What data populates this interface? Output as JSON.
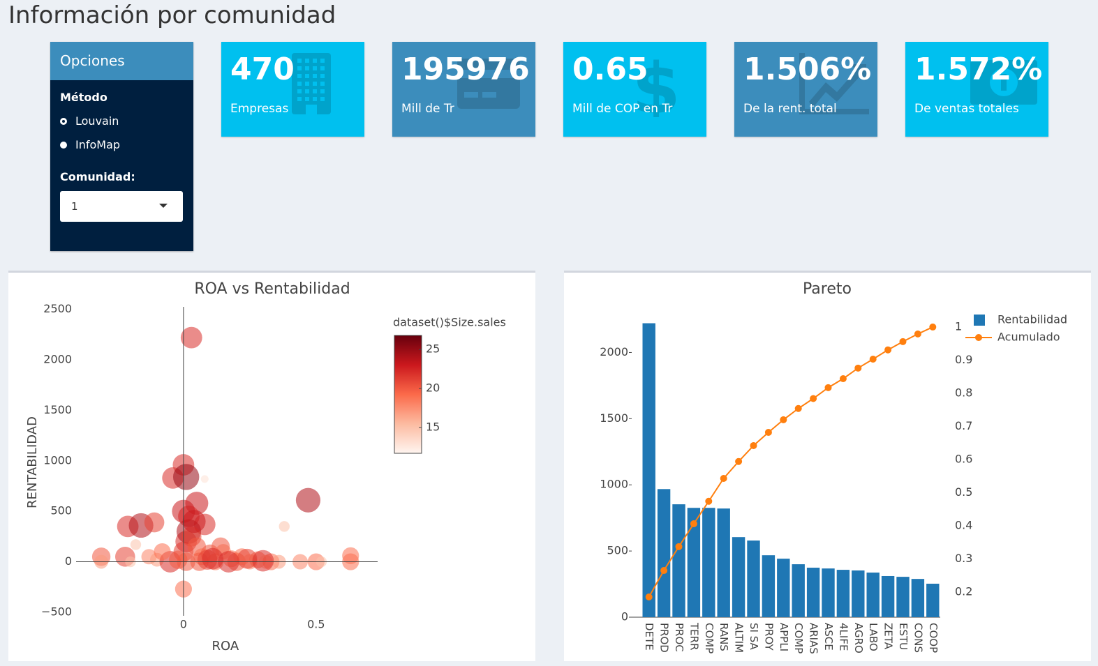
{
  "header": {
    "title": "Información por comunidad"
  },
  "sidebar": {
    "title": "Opciones",
    "method_label": "Método",
    "methods": [
      "Louvain",
      "InfoMap"
    ],
    "community_label": "Comunidad:",
    "community_value": "1"
  },
  "value_boxes": [
    {
      "value": "470",
      "label": "Empresas",
      "color": "#00c0ef"
    },
    {
      "value": "195976",
      "label": "Mill de Tr",
      "color": "#3c8dbc"
    },
    {
      "value": "0.65",
      "label": "Mill de COP en Tr",
      "color": "#00c0ef"
    },
    {
      "value": "1.506%",
      "label": "De la rent. total",
      "color": "#3c8dbc"
    },
    {
      "value": "1.572%",
      "label": "De ventas totales",
      "color": "#00c0ef"
    }
  ],
  "chart_data": [
    {
      "type": "scatter",
      "title": "ROA vs Rentabilidad",
      "x_label": "ROA",
      "y_label": "RENTABILIDAD",
      "x": [
        0.03,
        0,
        -0.04,
        0.01,
        0.08,
        0.05,
        0.08,
        0.02,
        -0.21,
        -0.16,
        -0.11,
        0.47,
        0.38,
        0,
        -0.31,
        -0.31,
        0.63,
        0.63,
        -0.22,
        -0.2,
        -0.13,
        -0.1,
        -0.05,
        0,
        0.01,
        0.02,
        0.03,
        0.05,
        0.07,
        0.1,
        0.12,
        0.15,
        0.18,
        0.2,
        0.22,
        0.25,
        0.28,
        0.31,
        0.33,
        0.36,
        0.44,
        0.5,
        0.52,
        0.06,
        0.09,
        -0.02,
        0.04,
        0,
        -0.18,
        0.14,
        0.17,
        0.24,
        0.3,
        0.01,
        -0.08,
        0.11
      ],
      "values": [
        2220,
        960,
        830,
        840,
        820,
        580,
        370,
        450,
        350,
        360,
        390,
        610,
        350,
        -270,
        50,
        0,
        60,
        0,
        50,
        0,
        50,
        20,
        0,
        100,
        200,
        300,
        250,
        150,
        50,
        80,
        0,
        100,
        30,
        0,
        50,
        0,
        20,
        0,
        0,
        0,
        0,
        0,
        0,
        0,
        20,
        20,
        400,
        500,
        170,
        150,
        0,
        30,
        10,
        0,
        100,
        30
      ],
      "sizes": [
        22,
        22,
        22,
        25,
        13,
        23,
        22,
        22,
        22,
        24,
        21,
        24,
        15,
        19,
        20,
        17,
        19,
        19,
        21,
        15,
        18,
        17,
        22,
        21,
        22,
        24,
        21,
        20,
        19,
        20,
        19,
        18,
        19,
        20,
        19,
        18,
        19,
        17,
        19,
        17,
        18,
        19,
        15,
        20,
        21,
        20,
        23,
        23,
        15,
        20,
        22,
        21,
        22,
        20,
        19,
        22
      ],
      "xlim": [
        -0.405,
        0.732
      ],
      "xticks": [
        0,
        0.5
      ],
      "ylim": [
        -535,
        2525
      ],
      "yticks": [
        {
          "value": -500,
          "label": "−500"
        },
        0,
        500,
        1000,
        1500,
        2000,
        2500
      ],
      "grid": false,
      "zeroline": true,
      "colorbar": {
        "title": "dataset()$Size.sales",
        "lim": [
          11.7,
          26.8
        ],
        "ticks": [
          15,
          20,
          25
        ]
      },
      "colorscale": [
        "#fff5f0",
        "#fcbba1",
        "#fb6a4a",
        "#cb181d",
        "#67000d"
      ]
    },
    {
      "type": "bar_line",
      "title": "Pareto",
      "categories": [
        "DETE",
        "PROD",
        "PROC",
        "TERR",
        "COMP",
        "RANS",
        "ALTIM",
        "SI SA",
        "PROY",
        "APPLI",
        "COMP",
        "ARIAS",
        "ASCE",
        "4LIFE",
        "AGRO",
        "LABO",
        "ZETA",
        "ESTU",
        "CONS",
        "COOP"
      ],
      "series": [
        {
          "name": "Rentabilidad",
          "type": "bar",
          "color": "#1f77b4",
          "values": [
            2221,
            968,
            853,
            826,
            826,
            821,
            605,
            579,
            468,
            442,
            400,
            374,
            368,
            358,
            353,
            337,
            311,
            305,
            289,
            253
          ]
        },
        {
          "name": "Acumulado",
          "type": "line",
          "axis": "y2",
          "color": "#ff7f0e",
          "values": [
            0.185,
            0.265,
            0.337,
            0.406,
            0.474,
            0.543,
            0.594,
            0.642,
            0.682,
            0.72,
            0.754,
            0.784,
            0.817,
            0.844,
            0.876,
            0.903,
            0.931,
            0.956,
            0.979,
            1.0
          ]
        }
      ],
      "ylim": [
        0,
        2250
      ],
      "yticks": [
        0,
        500,
        1000,
        1500,
        2000
      ],
      "y2lim": [
        0.124,
        1.023
      ],
      "y2ticks": [
        0.2,
        0.3,
        0.4,
        0.5,
        0.6,
        0.7,
        0.8,
        0.9,
        1
      ],
      "grid": false,
      "legend": "top-right"
    }
  ]
}
